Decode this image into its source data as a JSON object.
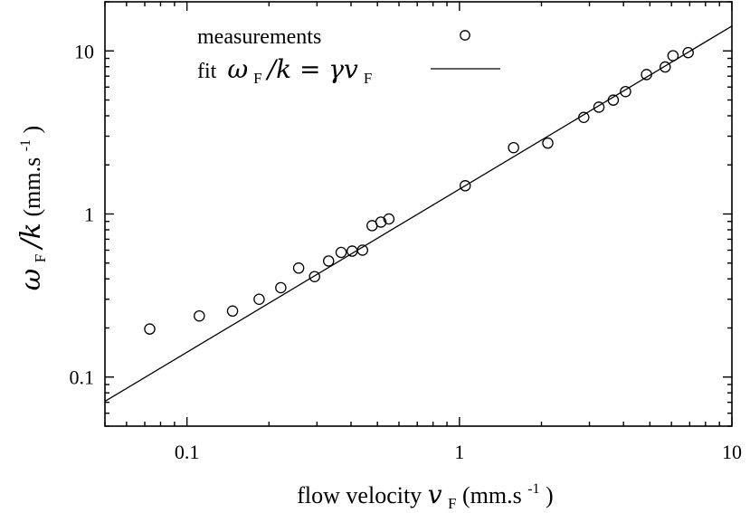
{
  "chart_data": {
    "type": "scatter",
    "xscale": "log",
    "yscale": "log",
    "xlim": [
      0.05,
      10
    ],
    "ylim": [
      0.05,
      20
    ],
    "grid": false,
    "legend_placement": "top-left",
    "xlabel_text": "flow velocity ",
    "xlabel_math": "v",
    "xlabel_sub": "F",
    "xlabel_unit": " (mm.s",
    "xlabel_unit_exp": "-1",
    "xlabel_close": ")",
    "ylabel_math_a": "ω",
    "ylabel_sub": "F",
    "ylabel_math_b": "/k",
    "ylabel_unit": "  (mm.s",
    "ylabel_unit_exp": "-1",
    "ylabel_close": ")",
    "x_ticks": [
      {
        "value": 0.1,
        "label": "0.1"
      },
      {
        "value": 1,
        "label": "1"
      },
      {
        "value": 10,
        "label": "10"
      }
    ],
    "y_ticks": [
      {
        "value": 0.1,
        "label": "0.1"
      },
      {
        "value": 1,
        "label": "1"
      },
      {
        "value": 10,
        "label": "10"
      }
    ],
    "series": [
      {
        "name": "measurements",
        "kind": "points",
        "x": [
          0.073,
          0.111,
          0.147,
          0.184,
          0.221,
          0.257,
          0.294,
          0.331,
          0.368,
          0.404,
          0.441,
          0.478,
          0.515,
          0.551,
          1.05,
          1.58,
          2.11,
          2.86,
          3.25,
          3.67,
          4.07,
          4.86,
          5.69,
          6.08,
          6.91
        ],
        "y": [
          0.197,
          0.237,
          0.254,
          0.3,
          0.353,
          0.466,
          0.413,
          0.515,
          0.581,
          0.592,
          0.6,
          0.848,
          0.892,
          0.932,
          1.49,
          2.55,
          2.72,
          3.91,
          4.52,
          4.99,
          5.63,
          7.16,
          7.97,
          9.34,
          9.76
        ]
      },
      {
        "name": "fit",
        "name_math": "ω",
        "name_sub": "F",
        "name_math_rest": "/k = γv",
        "name_sub2": "F",
        "kind": "line",
        "gamma": 1.42
      }
    ]
  }
}
